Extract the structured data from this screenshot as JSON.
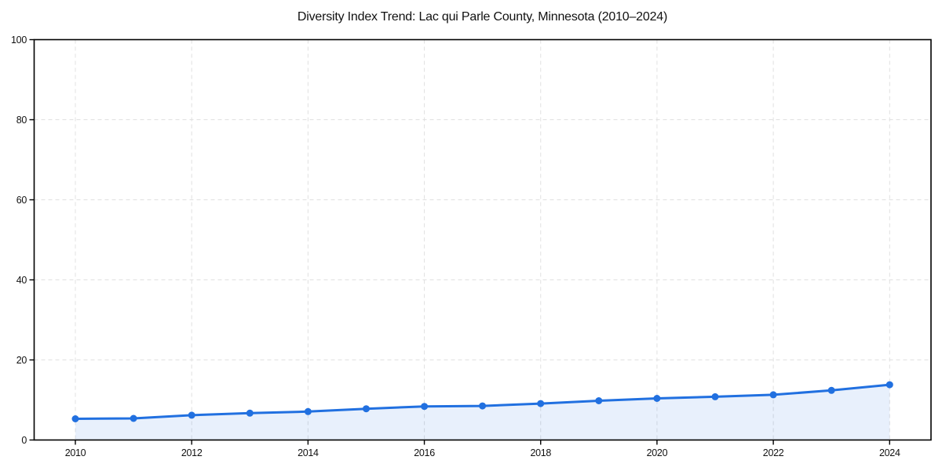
{
  "chart_data": {
    "type": "area",
    "title": "Diversity Index Trend: Lac qui Parle County, Minnesota (2010–2024)",
    "x": [
      2010,
      2011,
      2012,
      2013,
      2014,
      2015,
      2016,
      2017,
      2018,
      2019,
      2020,
      2021,
      2022,
      2023,
      2024
    ],
    "series": [
      {
        "name": "Diversity Index",
        "values": [
          5.3,
          5.4,
          6.2,
          6.7,
          7.1,
          7.8,
          8.4,
          8.5,
          9.1,
          9.8,
          10.4,
          10.8,
          11.3,
          12.4,
          13.8
        ]
      }
    ],
    "xlabel": "",
    "ylabel": "",
    "ylim": [
      0,
      100
    ],
    "y_ticks": [
      0,
      20,
      40,
      60,
      80,
      100
    ],
    "y_tick_labels": [
      "0",
      "20",
      "40",
      "60",
      "80",
      "100"
    ],
    "x_ticks": [
      2010,
      2012,
      2014,
      2016,
      2018,
      2020,
      2022,
      2024
    ],
    "x_tick_labels": [
      "2010",
      "2012",
      "2014",
      "2016",
      "2018",
      "2020",
      "2022",
      "2024"
    ],
    "grid": "dashed, both axes, at labeled ticks",
    "legend": "none",
    "marker": "circle",
    "colors": {
      "line": "#2170e0",
      "marker": "#2170e0",
      "fill": "rgba(33,112,224,0.10)",
      "grid": "#e0e0e0",
      "axis": "#000000",
      "text": "#111111",
      "background": "#ffffff"
    }
  }
}
